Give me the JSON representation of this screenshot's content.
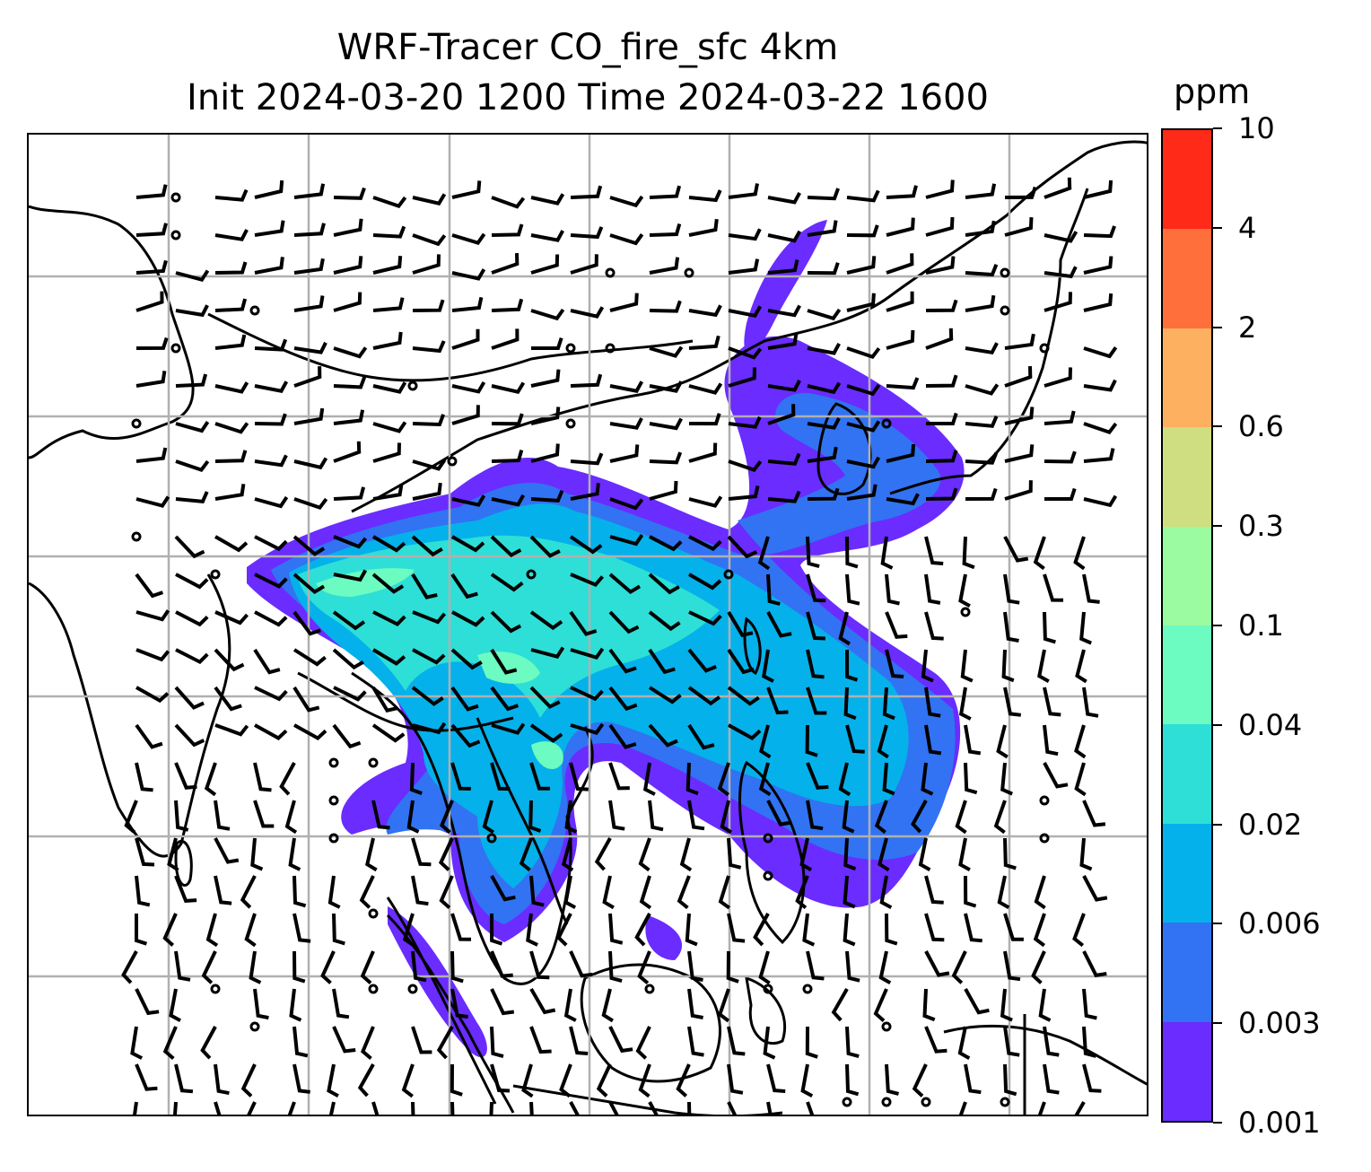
{
  "title": {
    "line1": "WRF-Tracer CO_fire_sfc 4km",
    "line2": "Init 2024-03-20 1200 Time 2024-03-22 1600"
  },
  "colorbar": {
    "unit": "ppm",
    "levels": [
      "0.001",
      "0.003",
      "0.006",
      "0.02",
      "0.04",
      "0.1",
      "0.3",
      "0.6",
      "2",
      "4",
      "10"
    ],
    "colors": [
      "#6a2cff",
      "#3173f2",
      "#05b1ea",
      "#2ddfd7",
      "#6cfbc0",
      "#9afba0",
      "#cede80",
      "#feb061",
      "#ff6f3b",
      "#ff2a18"
    ]
  },
  "map": {
    "gridlines": true,
    "coastline_color": "#000000",
    "grid_color": "#b0b0b0",
    "plume_description_colors": {
      "outer": "#6a2cff",
      "mid": "#3173f2",
      "inner": "#05b1ea",
      "core": "#2ddfd7",
      "peak": "#6cfbc0"
    },
    "wind_barbs": true
  }
}
